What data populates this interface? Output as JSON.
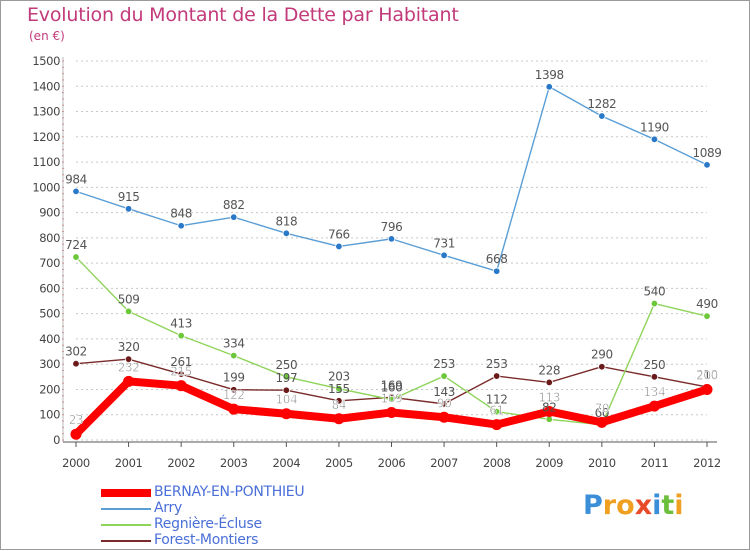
{
  "title": "Evolution du Montant de la Dette par Habitant",
  "unit_label": "(en €)",
  "logo": {
    "text": "Proxiti",
    "letters": [
      {
        "ch": "P",
        "color": "#3a8fd8"
      },
      {
        "ch": "r",
        "color": "#f0a020"
      },
      {
        "ch": "o",
        "color": "#f0a020"
      },
      {
        "ch": "x",
        "color": "#e84a2a"
      },
      {
        "ch": "i",
        "color": "#3a8fd8"
      },
      {
        "ch": "t",
        "color": "#6cbf3a"
      },
      {
        "ch": "i",
        "color": "#f0a020"
      }
    ]
  },
  "chart_data": {
    "type": "line",
    "x": [
      "2000",
      "2001",
      "2002",
      "2003",
      "2004",
      "2005",
      "2006",
      "2007",
      "2008",
      "2009",
      "2010",
      "2011",
      "2012"
    ],
    "ylim": [
      0,
      1500
    ],
    "yticks": [
      0,
      100,
      200,
      300,
      400,
      500,
      600,
      700,
      800,
      900,
      1000,
      1100,
      1200,
      1300,
      1400,
      1500
    ],
    "grid": "horizontal dashed",
    "legend_position": "bottom-left",
    "series": [
      {
        "name": "BERNAY-EN-PONTHIEU",
        "color": "#ff0000",
        "marker_color": "#ff0000",
        "label_color": "#ffffff",
        "values": [
          23,
          232,
          215,
          122,
          104,
          84,
          109,
          90,
          61,
          113,
          70,
          134,
          200
        ]
      },
      {
        "name": "Arry",
        "color": "#5a9ed6",
        "marker_color": "#2a78c8",
        "label_color": "#444444",
        "values": [
          984,
          915,
          848,
          882,
          818,
          766,
          796,
          731,
          668,
          1398,
          1282,
          1190,
          1089
        ]
      },
      {
        "name": "Regnière-Écluse",
        "color": "#8fd45a",
        "marker_color": "#6cc83a",
        "label_color": "#444444",
        "values": [
          724,
          509,
          413,
          334,
          250,
          203,
          160,
          253,
          112,
          82,
          60,
          540,
          490
        ]
      },
      {
        "name": "Forest-Montiers",
        "color": "#7a2a2a",
        "marker_color": "#6a1a1a",
        "label_color": "#444444",
        "values": [
          302,
          320,
          261,
          199,
          197,
          155,
          169,
          143,
          253,
          228,
          290,
          250,
          210
        ]
      }
    ]
  }
}
